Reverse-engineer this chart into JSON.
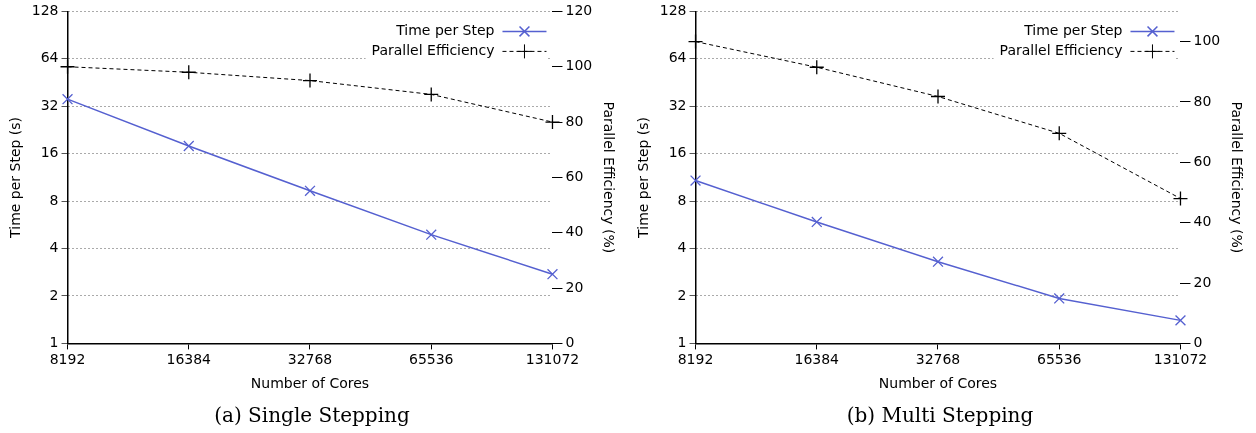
{
  "chart_data": [
    {
      "type": "line",
      "title": "(a) Single Stepping",
      "xlabel": "Number of Cores",
      "ylabel": "Time per Step (s)",
      "y2label": "Parallel Efficiency (%)",
      "categories": [
        "8192",
        "16384",
        "32768",
        "65536",
        "131072"
      ],
      "series": [
        {
          "name": "Time per Step",
          "color": "#5560d0",
          "values": [
            35.5,
            17.9,
            9.3,
            4.9,
            2.75
          ],
          "marker": "cross",
          "line_style": "solid"
        },
        {
          "name": "Parallel Efficiency",
          "color": "#000000",
          "values": [
            100,
            98,
            95,
            90,
            80
          ],
          "axis": "y2",
          "marker": "plus",
          "line_style": "dashed"
        }
      ],
      "log": "y",
      "ylim": [
        1,
        128
      ],
      "yticks": [
        1,
        2,
        4,
        8,
        16,
        32,
        64,
        128
      ],
      "y2lim": [
        0,
        120
      ],
      "y2ticks": [
        0,
        20,
        40,
        60,
        80,
        100,
        120
      ],
      "grid": "y",
      "legend": "top right"
    },
    {
      "type": "line",
      "title": "(b) Multi Stepping",
      "xlabel": "Number of Cores",
      "ylabel": "Time per Step (s)",
      "y2label": "Parallel Efficiency (%)",
      "categories": [
        "8192",
        "16384",
        "32768",
        "65536",
        "131072"
      ],
      "series": [
        {
          "name": "Time per Step",
          "color": "#5560d0",
          "values": [
            10.8,
            5.9,
            3.3,
            1.93,
            1.4
          ],
          "marker": "cross",
          "line_style": "solid"
        },
        {
          "name": "Parallel Efficiency",
          "color": "#000000",
          "values": [
            100,
            91.5,
            81.8,
            69.6,
            48
          ],
          "axis": "y2",
          "marker": "plus",
          "line_style": "dashed"
        }
      ],
      "log": "y",
      "ylim": [
        1,
        128
      ],
      "yticks": [
        1,
        2,
        4,
        8,
        16,
        32,
        64,
        128
      ],
      "y2lim": [
        0,
        110
      ],
      "y2ticks": [
        0,
        20,
        40,
        60,
        80,
        100
      ],
      "grid": "y",
      "legend": "top right"
    }
  ]
}
